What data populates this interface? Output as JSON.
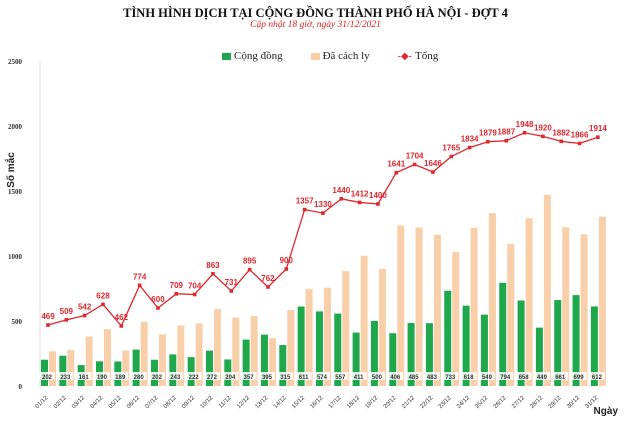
{
  "chart_data": {
    "type": "bar",
    "title": "TÌNH HÌNH DỊCH TẠI CỘNG ĐỒNG THÀNH PHỐ HÀ NỘI - ĐỢT 4",
    "subtitle": "Cập nhật 18 giờ, ngày 31/12/2021",
    "xlabel": "Ngày",
    "ylabel": "Số mắc",
    "ylim": [
      0,
      2500
    ],
    "yticks": [
      0,
      500,
      1000,
      1500,
      2000,
      2500
    ],
    "grid": false,
    "legend": "top",
    "categories": [
      "01/12",
      "02/12",
      "03/12",
      "04/12",
      "05/12",
      "06/12",
      "07/12",
      "08/12",
      "09/12",
      "10/12",
      "11/12",
      "12/12",
      "13/12",
      "14/12",
      "15/12",
      "16/12",
      "17/12",
      "18/12",
      "19/12",
      "20/12",
      "21/12",
      "22/12",
      "23/12",
      "24/12",
      "25/12",
      "26/12",
      "27/12",
      "28/12",
      "29/12",
      "30/12",
      "31/12"
    ],
    "series": [
      {
        "name": "Cộng đồng",
        "type": "bar",
        "color": "#1fa84b",
        "values": [
          202,
          233,
          161,
          190,
          189,
          280,
          202,
          243,
          222,
          272,
          204,
          357,
          395,
          315,
          611,
          574,
          557,
          411,
          500,
          406,
          485,
          483,
          733,
          618,
          549,
          794,
          658,
          449,
          661,
          699,
          612
        ]
      },
      {
        "name": "Đã cách ly",
        "type": "bar",
        "color": "#f8cfa8",
        "values": [
          267,
          276,
          381,
          438,
          273,
          494,
          398,
          466,
          482,
          591,
          527,
          538,
          367,
          585,
          746,
          756,
          883,
          1001,
          900,
          1235,
          1219,
          1163,
          1032,
          1216,
          1330,
          1093,
          1290,
          1471,
          1221,
          1167,
          1302
        ]
      },
      {
        "name": "Tổng",
        "type": "line",
        "color": "#e0262e",
        "values": [
          469,
          509,
          542,
          628,
          462,
          774,
          600,
          709,
          704,
          863,
          731,
          895,
          762,
          900,
          1357,
          1330,
          1440,
          1412,
          1400,
          1641,
          1704,
          1646,
          1765,
          1834,
          1879,
          1887,
          1948,
          1920,
          1882,
          1866,
          1914
        ]
      }
    ]
  }
}
